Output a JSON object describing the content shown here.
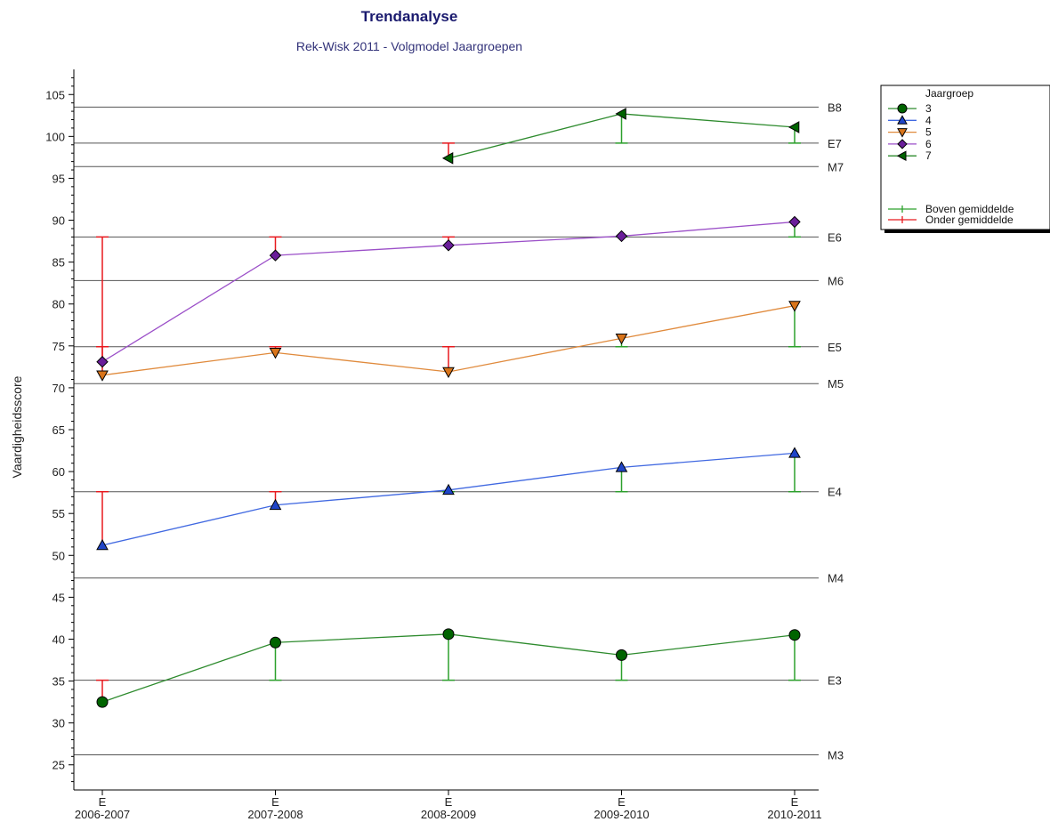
{
  "chart_data": {
    "type": "line",
    "title": "Trendanalyse",
    "subtitle": "Rek-Wisk 2011 - Volgmodel Jaargroepen",
    "ylabel": "Vaardigheidsscore",
    "xlabel": "",
    "ylim": [
      22,
      108
    ],
    "yticks": [
      25,
      30,
      35,
      40,
      45,
      50,
      55,
      60,
      65,
      70,
      75,
      80,
      85,
      90,
      95,
      100,
      105
    ],
    "categories": [
      {
        "top": "E",
        "bottom": "2006-2007"
      },
      {
        "top": "E",
        "bottom": "2007-2008"
      },
      {
        "top": "E",
        "bottom": "2008-2009"
      },
      {
        "top": "E",
        "bottom": "2009-2010"
      },
      {
        "top": "E",
        "bottom": "2010-2011"
      }
    ],
    "reference_lines": [
      {
        "label": "B8",
        "value": 103.5
      },
      {
        "label": "E7",
        "value": 99.2
      },
      {
        "label": "M7",
        "value": 96.4
      },
      {
        "label": "E6",
        "value": 88.0
      },
      {
        "label": "M6",
        "value": 82.8
      },
      {
        "label": "E5",
        "value": 74.9
      },
      {
        "label": "M5",
        "value": 70.5
      },
      {
        "label": "E4",
        "value": 57.6
      },
      {
        "label": "M4",
        "value": 47.3
      },
      {
        "label": "E3",
        "value": 35.1
      },
      {
        "label": "M3",
        "value": 26.2
      }
    ],
    "legend_title": "Jaargroep",
    "legend_position": "top-right",
    "series": [
      {
        "name": "3",
        "color": "#2e8b2e",
        "marker_color": "#006400",
        "marker": "circle",
        "values": [
          32.5,
          39.6,
          40.6,
          38.1,
          40.5
        ],
        "ref": 35.1
      },
      {
        "name": "4",
        "color": "#4169e1",
        "marker_color": "#1f45c8",
        "marker": "triangle-up",
        "values": [
          51.2,
          56.0,
          57.8,
          60.5,
          62.2
        ],
        "ref": 57.6
      },
      {
        "name": "5",
        "color": "#e08a3c",
        "marker_color": "#d9741a",
        "marker": "triangle-down",
        "values": [
          71.5,
          74.2,
          71.9,
          75.9,
          79.8
        ],
        "ref": 74.9
      },
      {
        "name": "6",
        "color": "#9b4fc8",
        "marker_color": "#6a1e9a",
        "marker": "diamond",
        "values": [
          73.1,
          85.8,
          87.0,
          88.1,
          89.8
        ],
        "ref": 88.0
      },
      {
        "name": "7",
        "color": "#2e8b2e",
        "marker_color": "#006400",
        "marker": "triangle-left",
        "values": [
          null,
          null,
          97.4,
          102.7,
          101.1
        ],
        "ref": 99.2
      }
    ],
    "error_legend": [
      {
        "label": "Boven gemiddelde",
        "color": "#2ca02c"
      },
      {
        "label": "Onder gemiddelde",
        "color": "#e8191e"
      }
    ]
  }
}
